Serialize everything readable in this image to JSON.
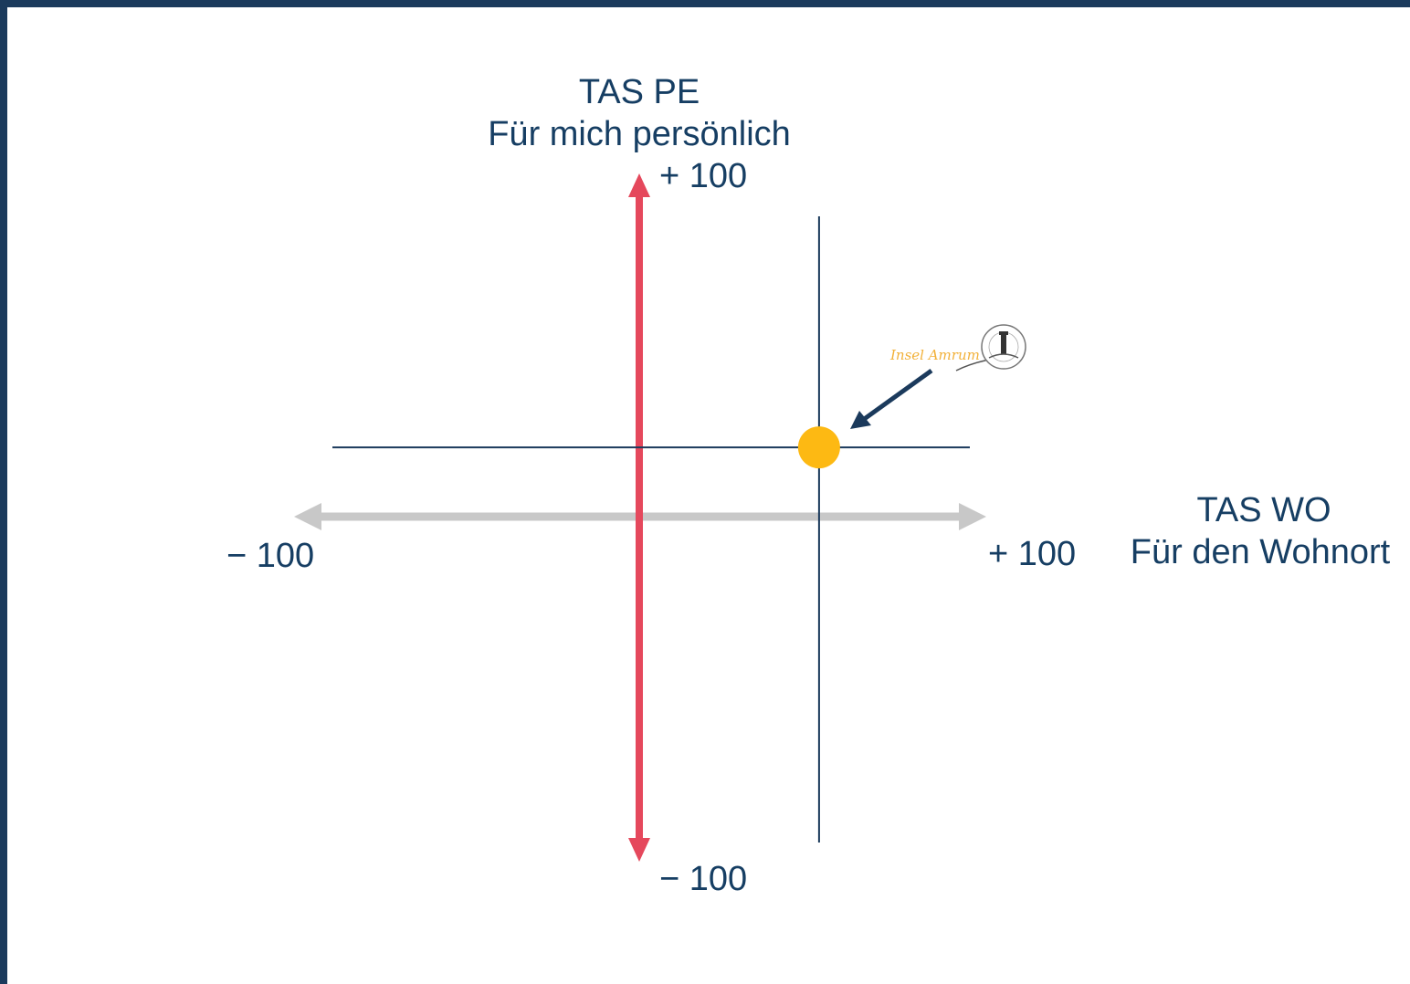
{
  "chart_data": {
    "type": "scatter",
    "title": "",
    "x_axis": {
      "name_line1": "TAS WO",
      "name_line2": "Für den Wohnort",
      "min_label": "− 100",
      "max_label": "+ 100",
      "range": [
        -100,
        100
      ],
      "color": "#c8c8c8"
    },
    "y_axis": {
      "name_line1": "TAS PE",
      "name_line2": "Für mich persönlich",
      "min_label": "− 100",
      "max_label": "+ 100",
      "range": [
        -100,
        100
      ],
      "color": "#e5485c"
    },
    "points": [
      {
        "x": 55,
        "y": 22,
        "color": "#fdb913",
        "annotation_logo": "Insel Amrum"
      }
    ],
    "crosshair_color": "#1b3a5c",
    "arrow_color": "#1b3a5c",
    "grid": false
  }
}
